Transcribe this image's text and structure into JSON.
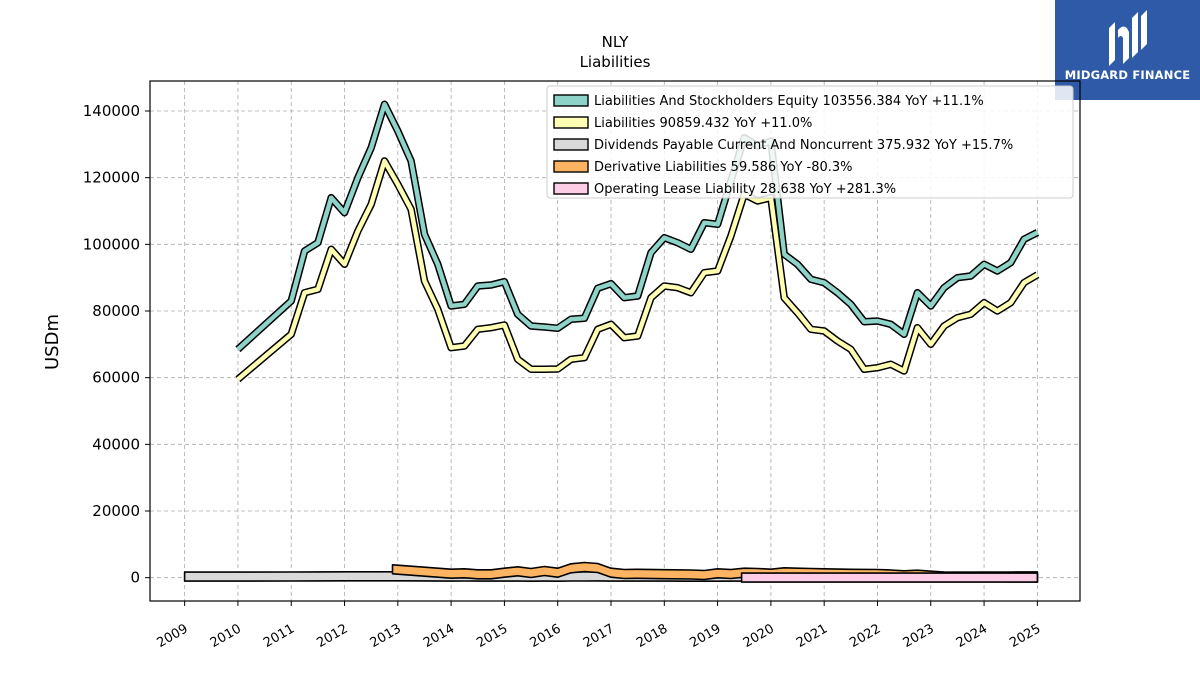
{
  "logo": {
    "text": "MIDGARD FINANCE",
    "color": "#2f5aa8"
  },
  "chart_data": {
    "type": "area",
    "title": "NLY",
    "subtitle": "Liabilities",
    "xlabel": "",
    "ylabel": "USDm",
    "xlim": [
      2008.35,
      2025.8
    ],
    "ylim": [
      -7000,
      149000
    ],
    "yticks": [
      0,
      20000,
      40000,
      60000,
      80000,
      100000,
      120000,
      140000
    ],
    "xticks": [
      "2009",
      "2010",
      "2011",
      "2012",
      "2013",
      "2014",
      "2015",
      "2016",
      "2017",
      "2018",
      "2019",
      "2020",
      "2021",
      "2022",
      "2023",
      "2024",
      "2025"
    ],
    "grid": true,
    "legend_position": "top-right",
    "series": [
      {
        "name": "Liabilities And Stockholders Equity",
        "legend": "Liabilities And Stockholders Equity  103556.384 YoY +11.1%",
        "color": "#8dd3c7",
        "x": [
          2010.0,
          2011.0,
          2011.25,
          2011.5,
          2011.75,
          2012.0,
          2012.25,
          2012.5,
          2012.75,
          2013.0,
          2013.25,
          2013.5,
          2013.75,
          2014.0,
          2014.25,
          2014.5,
          2014.75,
          2015.0,
          2015.25,
          2015.5,
          2015.75,
          2016.0,
          2016.25,
          2016.5,
          2016.75,
          2017.0,
          2017.25,
          2017.5,
          2017.75,
          2018.0,
          2018.25,
          2018.5,
          2018.75,
          2019.0,
          2019.25,
          2019.5,
          2019.75,
          2020.0,
          2020.25,
          2020.5,
          2020.75,
          2021.0,
          2021.25,
          2021.5,
          2021.75,
          2022.0,
          2022.25,
          2022.5,
          2022.75,
          2023.0,
          2023.25,
          2023.5,
          2023.75,
          2024.0,
          2024.25,
          2024.5,
          2024.75,
          2025.0
        ],
        "y": [
          68500,
          83000,
          98000,
          100500,
          114000,
          109500,
          120000,
          129000,
          142000,
          134000,
          125000,
          103000,
          94000,
          81500,
          82000,
          87500,
          87800,
          88800,
          79000,
          75500,
          75200,
          74800,
          77500,
          77800,
          86800,
          88200,
          84000,
          84500,
          97500,
          102000,
          100500,
          98500,
          106500,
          106000,
          119000,
          132000,
          129500,
          131000,
          97000,
          94000,
          89500,
          88500,
          85500,
          82000,
          76800,
          77000,
          76000,
          73000,
          85500,
          81500,
          87000,
          90000,
          90500,
          94000,
          92000,
          94500,
          101500,
          103556
        ]
      },
      {
        "name": "Liabilities",
        "legend": "Liabilities  90859.432 YoY +11.0%",
        "color": "#ffffb3",
        "x": [
          2010.0,
          2011.0,
          2011.25,
          2011.5,
          2011.75,
          2012.0,
          2012.25,
          2012.5,
          2012.75,
          2013.0,
          2013.25,
          2013.5,
          2013.75,
          2014.0,
          2014.25,
          2014.5,
          2014.75,
          2015.0,
          2015.25,
          2015.5,
          2015.75,
          2016.0,
          2016.25,
          2016.5,
          2016.75,
          2017.0,
          2017.25,
          2017.5,
          2017.75,
          2018.0,
          2018.25,
          2018.5,
          2018.75,
          2019.0,
          2019.25,
          2019.5,
          2019.75,
          2020.0,
          2020.25,
          2020.5,
          2020.75,
          2021.0,
          2021.25,
          2021.5,
          2021.75,
          2022.0,
          2022.25,
          2022.5,
          2022.75,
          2023.0,
          2023.25,
          2023.5,
          2023.75,
          2024.0,
          2024.25,
          2024.5,
          2024.75,
          2025.0
        ],
        "y": [
          59500,
          73000,
          85500,
          86500,
          98500,
          94000,
          104000,
          112000,
          125000,
          118000,
          110500,
          89000,
          80500,
          69000,
          69500,
          74500,
          75000,
          75800,
          65500,
          62500,
          62500,
          62600,
          65500,
          66000,
          74500,
          76000,
          72000,
          72500,
          84000,
          87500,
          87000,
          85500,
          91500,
          92000,
          102500,
          115000,
          113000,
          114000,
          84000,
          79500,
          74500,
          74000,
          71000,
          68500,
          62500,
          63000,
          64000,
          62000,
          75000,
          70000,
          75500,
          78000,
          79000,
          82500,
          80000,
          82500,
          88500,
          90859
        ]
      },
      {
        "name": "Dividends Payable Current And Noncurrent",
        "legend": "Dividends Payable Current And Noncurrent  375.932 YoY +15.7%",
        "color": "#d9d9d9",
        "x": [
          2009.0,
          2010.0,
          2011.0,
          2011.5,
          2012.0,
          2012.5,
          2013.0,
          2013.5,
          2014.0,
          2014.25,
          2014.5,
          2014.75,
          2015.0,
          2015.25,
          2015.5,
          2015.75,
          2016.0,
          2016.25,
          2016.5,
          2016.75,
          2017.0,
          2017.5,
          2018.0,
          2018.5,
          2018.75,
          2019.0,
          2019.5,
          2020.0,
          2020.5,
          2021.0,
          2021.5,
          2022.0,
          2022.5,
          2023.0,
          2023.5,
          2024.0,
          2024.5,
          2025.0
        ],
        "y": [
          320,
          330,
          350,
          380,
          400,
          410,
          420,
          380,
          330,
          340,
          320,
          310,
          330,
          360,
          300,
          330,
          300,
          340,
          360,
          380,
          330,
          320,
          310,
          300,
          290,
          300,
          330,
          310,
          300,
          290,
          280,
          270,
          260,
          270,
          290,
          310,
          340,
          376
        ]
      },
      {
        "name": "Derivative Liabilities",
        "legend": "Derivative Liabilities  59.586 YoY -80.3%",
        "color": "#fdb462",
        "x": [
          2012.9,
          2013.25,
          2013.5,
          2013.75,
          2014.0,
          2014.25,
          2014.5,
          2014.75,
          2015.0,
          2015.25,
          2015.5,
          2015.75,
          2016.0,
          2016.25,
          2016.5,
          2016.75,
          2017.0,
          2017.25,
          2017.5,
          2018.0,
          2018.5,
          2018.75,
          2019.0,
          2019.25,
          2019.5,
          2019.75,
          2020.0,
          2020.25,
          2020.5,
          2020.75,
          2021.0,
          2021.5,
          2022.0,
          2022.25,
          2022.5,
          2022.75,
          2023.0,
          2023.25,
          2023.5,
          2023.75,
          2024.0,
          2024.5,
          2025.0
        ],
        "y": [
          2500,
          2100,
          1800,
          1500,
          1200,
          1300,
          1000,
          1000,
          1500,
          1900,
          1400,
          2000,
          1500,
          2800,
          3200,
          2900,
          1500,
          1100,
          1150,
          1050,
          950,
          800,
          1300,
          1100,
          1500,
          1400,
          1200,
          1600,
          1500,
          1400,
          1300,
          1150,
          1100,
          950,
          700,
          900,
          600,
          350,
          300,
          250,
          200,
          120,
          60
        ]
      },
      {
        "name": "Operating Lease Liability",
        "legend": "Operating Lease Liability  28.638 YoY +281.3%",
        "color": "#fccde5",
        "x": [
          2019.45,
          2020.0,
          2021.0,
          2022.0,
          2023.0,
          2024.0,
          2025.0
        ],
        "y": [
          15,
          14,
          12,
          10,
          8,
          7.5,
          28.6
        ]
      }
    ]
  }
}
